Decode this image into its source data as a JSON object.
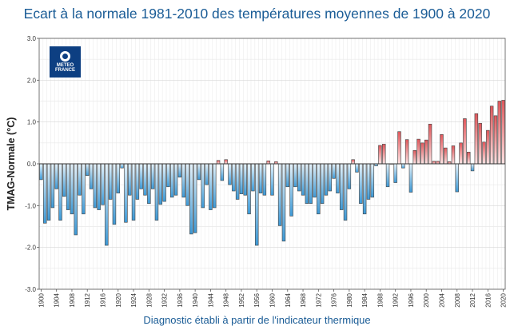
{
  "chart_data": {
    "type": "bar",
    "title": "Ecart à la normale 1981-2010 des températures moyennes de 1900 à 2020",
    "xlabel": "Diagnostic établi à partir de l'indicateur thermique",
    "ylabel": "TMAG-Normale (°C)",
    "ylim": [
      -3.0,
      3.0
    ],
    "ytick_labels": [
      "3.0",
      "2.0",
      "1.0",
      "0.0",
      "-1.0",
      "-2.0",
      "-3.0"
    ],
    "xtick_labels": [
      "1900",
      "1904",
      "1908",
      "1912",
      "1916",
      "1920",
      "1924",
      "1928",
      "1932",
      "1936",
      "1940",
      "1944",
      "1948",
      "1952",
      "1956",
      "1960",
      "1964",
      "1968",
      "1972",
      "1976",
      "1980",
      "1984",
      "1988",
      "1992",
      "1996",
      "2000",
      "2004",
      "2008",
      "2012",
      "2016",
      "2020"
    ],
    "x": [
      1900,
      1901,
      1902,
      1903,
      1904,
      1905,
      1906,
      1907,
      1908,
      1909,
      1910,
      1911,
      1912,
      1913,
      1914,
      1915,
      1916,
      1917,
      1918,
      1919,
      1920,
      1921,
      1922,
      1923,
      1924,
      1925,
      1926,
      1927,
      1928,
      1929,
      1930,
      1931,
      1932,
      1933,
      1934,
      1935,
      1936,
      1937,
      1938,
      1939,
      1940,
      1941,
      1942,
      1943,
      1944,
      1945,
      1946,
      1947,
      1948,
      1949,
      1950,
      1951,
      1952,
      1953,
      1954,
      1955,
      1956,
      1957,
      1958,
      1959,
      1960,
      1961,
      1962,
      1963,
      1964,
      1965,
      1966,
      1967,
      1968,
      1969,
      1970,
      1971,
      1972,
      1973,
      1974,
      1975,
      1976,
      1977,
      1978,
      1979,
      1980,
      1981,
      1982,
      1983,
      1984,
      1985,
      1986,
      1987,
      1988,
      1989,
      1990,
      1991,
      1992,
      1993,
      1994,
      1995,
      1996,
      1997,
      1998,
      1999,
      2000,
      2001,
      2002,
      2003,
      2004,
      2005,
      2006,
      2007,
      2008,
      2009,
      2010,
      2011,
      2012,
      2013,
      2014,
      2015,
      2016,
      2017,
      2018,
      2019,
      2020
    ],
    "values": [
      -0.38,
      -1.42,
      -1.35,
      -1.05,
      -0.6,
      -1.35,
      -0.78,
      -1.1,
      -1.2,
      -1.7,
      -0.75,
      -1.2,
      -0.28,
      -0.6,
      -1.05,
      -1.1,
      -0.98,
      -1.95,
      -0.85,
      -1.45,
      -0.7,
      -0.1,
      -1.4,
      -0.75,
      -1.35,
      -0.85,
      -0.6,
      -0.75,
      -0.95,
      -0.6,
      -1.35,
      -0.97,
      -0.9,
      -0.55,
      -0.8,
      -0.75,
      -0.32,
      -0.8,
      -1.0,
      -1.68,
      -1.65,
      -0.38,
      -1.05,
      -0.5,
      -1.1,
      -1.05,
      0.08,
      -0.4,
      0.1,
      -0.5,
      -0.65,
      -0.85,
      -0.72,
      -0.75,
      -1.2,
      -0.65,
      -1.95,
      -0.7,
      -0.75,
      0.07,
      -0.75,
      0.05,
      -1.48,
      -1.85,
      -0.55,
      -1.25,
      -0.55,
      -0.65,
      -0.75,
      -0.95,
      -0.95,
      -0.8,
      -1.2,
      -0.95,
      -0.75,
      -0.65,
      -0.35,
      -0.7,
      -1.1,
      -1.35,
      -0.6,
      0.1,
      -0.2,
      -0.95,
      -1.2,
      -0.85,
      -0.8,
      -0.05,
      0.44,
      0.47,
      -0.55,
      0.0,
      -0.45,
      0.77,
      -0.1,
      0.58,
      -0.68,
      0.32,
      0.59,
      0.5,
      0.57,
      0.95,
      0.06,
      0.06,
      0.7,
      0.38,
      0.05,
      0.43,
      -0.67,
      0.5,
      1.08,
      0.28,
      -0.17,
      1.2,
      0.97,
      0.52,
      0.8,
      1.38,
      1.15,
      1.5,
      1.52
    ]
  }
}
